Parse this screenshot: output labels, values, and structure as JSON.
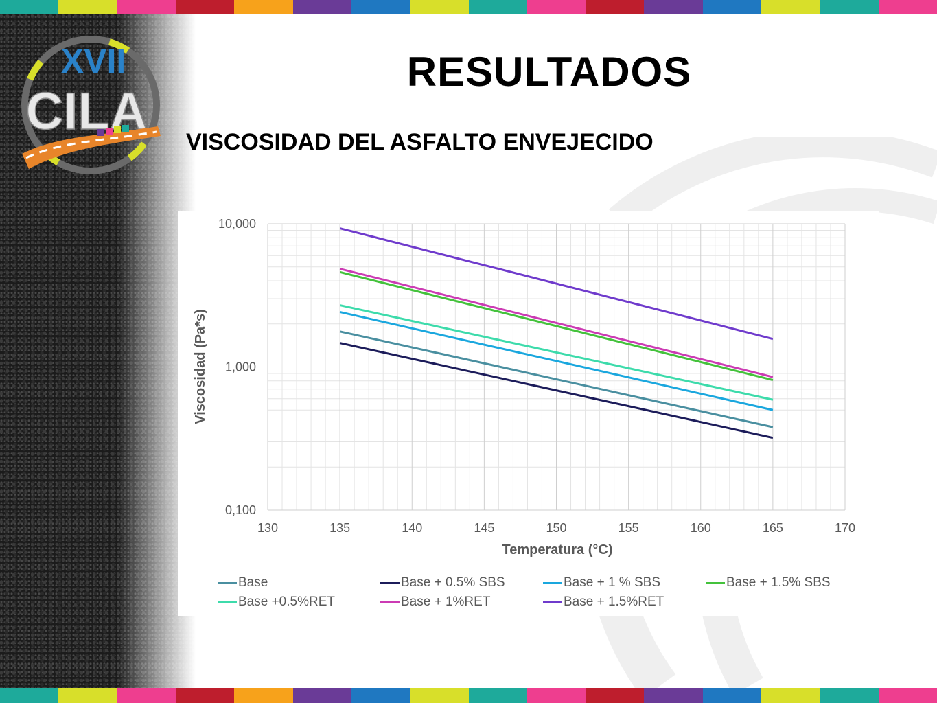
{
  "slide": {
    "title": "RESULTADOS",
    "subtitle": "VISCOSIDAD DEL ASFALTO ENVEJECIDO",
    "logo_text": {
      "numeral": "XVII",
      "name": "CILA"
    },
    "stripe_colors": [
      "#1eaa9b",
      "#d8df2a",
      "#ee3e8f",
      "#be1e2d",
      "#f7a21b",
      "#6a3b97",
      "#1f78c1",
      "#d8df2a",
      "#1eaa9b",
      "#ee3e8f",
      "#be1e2d",
      "#6a3b97",
      "#1f78c1",
      "#d8df2a",
      "#1eaa9b",
      "#ee3e8f"
    ]
  },
  "chart_data": {
    "type": "line",
    "title": "",
    "xlabel": "Temperatura (°C)",
    "ylabel": "Viscosidad (Pa*s)",
    "xlim": [
      130,
      170
    ],
    "ylim": [
      0.1,
      10
    ],
    "yscale": "log",
    "x_ticks": [
      "130",
      "135",
      "140",
      "145",
      "150",
      "155",
      "160",
      "165",
      "170"
    ],
    "y_ticks": [
      "0,100",
      "1,000",
      "10,000"
    ],
    "grid": true,
    "legend_position": "bottom",
    "series": [
      {
        "name": "Base",
        "color": "#4a8fa0",
        "x": [
          135,
          165
        ],
        "y": [
          1.77,
          0.38
        ]
      },
      {
        "name": "Base + 0.5% SBS",
        "color": "#1c1c5a",
        "x": [
          135,
          165
        ],
        "y": [
          1.47,
          0.32
        ]
      },
      {
        "name": "Base + 1 % SBS",
        "color": "#1aa7de",
        "x": [
          135,
          165
        ],
        "y": [
          2.42,
          0.5
        ]
      },
      {
        "name": "Base + 1.5% SBS",
        "color": "#44c23c",
        "x": [
          135,
          165
        ],
        "y": [
          4.6,
          0.81
        ]
      },
      {
        "name": "Base +0.5%RET",
        "color": "#3ddbab",
        "x": [
          135,
          165
        ],
        "y": [
          2.7,
          0.59
        ]
      },
      {
        "name": "Base + 1%RET",
        "color": "#cc3bb4",
        "x": [
          135,
          165
        ],
        "y": [
          4.85,
          0.85
        ]
      },
      {
        "name": "Base + 1.5%RET",
        "color": "#6f3bcc",
        "x": [
          135,
          165
        ],
        "y": [
          9.3,
          1.57
        ]
      }
    ]
  }
}
